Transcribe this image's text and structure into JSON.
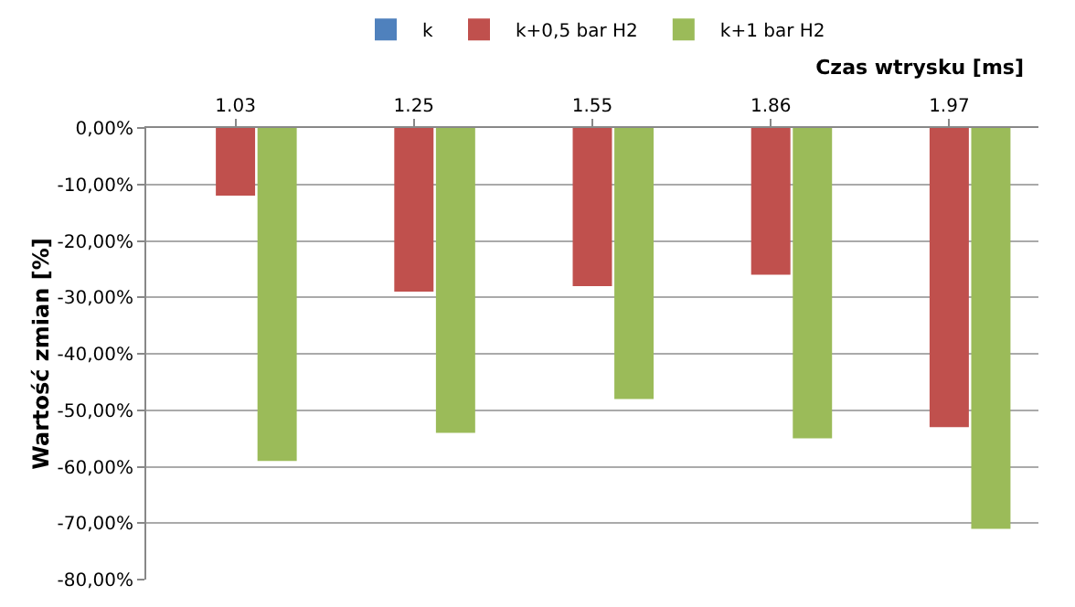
{
  "chart_data": {
    "type": "bar",
    "xlabel": "Czas wtrysku [ms]",
    "ylabel": "Wartość zmian [%]",
    "categories": [
      "1.03",
      "1.25",
      "1.55",
      "1.86",
      "1.97"
    ],
    "series": [
      {
        "name": "k",
        "color": "#4f81bd",
        "values": [
          0,
          0,
          0,
          0,
          0
        ]
      },
      {
        "name": "k+0,5 bar H2",
        "color": "#c0504d",
        "values": [
          -12,
          -29,
          -28,
          -26,
          -53
        ]
      },
      {
        "name": "k+1 bar H2",
        "color": "#9bbb59",
        "values": [
          -59,
          -54,
          -48,
          -55,
          -71
        ]
      }
    ],
    "ylim": [
      -80,
      0
    ],
    "yticks": [
      {
        "value": 0,
        "label": "0,00%"
      },
      {
        "value": -10,
        "label": "-10,00%"
      },
      {
        "value": -20,
        "label": "-20,00%"
      },
      {
        "value": -30,
        "label": "-30,00%"
      },
      {
        "value": -40,
        "label": "-40,00%"
      },
      {
        "value": -50,
        "label": "-50,00%"
      },
      {
        "value": -60,
        "label": "-60,00%"
      },
      {
        "value": -70,
        "label": "-70,00%"
      },
      {
        "value": -80,
        "label": "-80,00%"
      }
    ],
    "grid": "y",
    "legend": "top"
  }
}
